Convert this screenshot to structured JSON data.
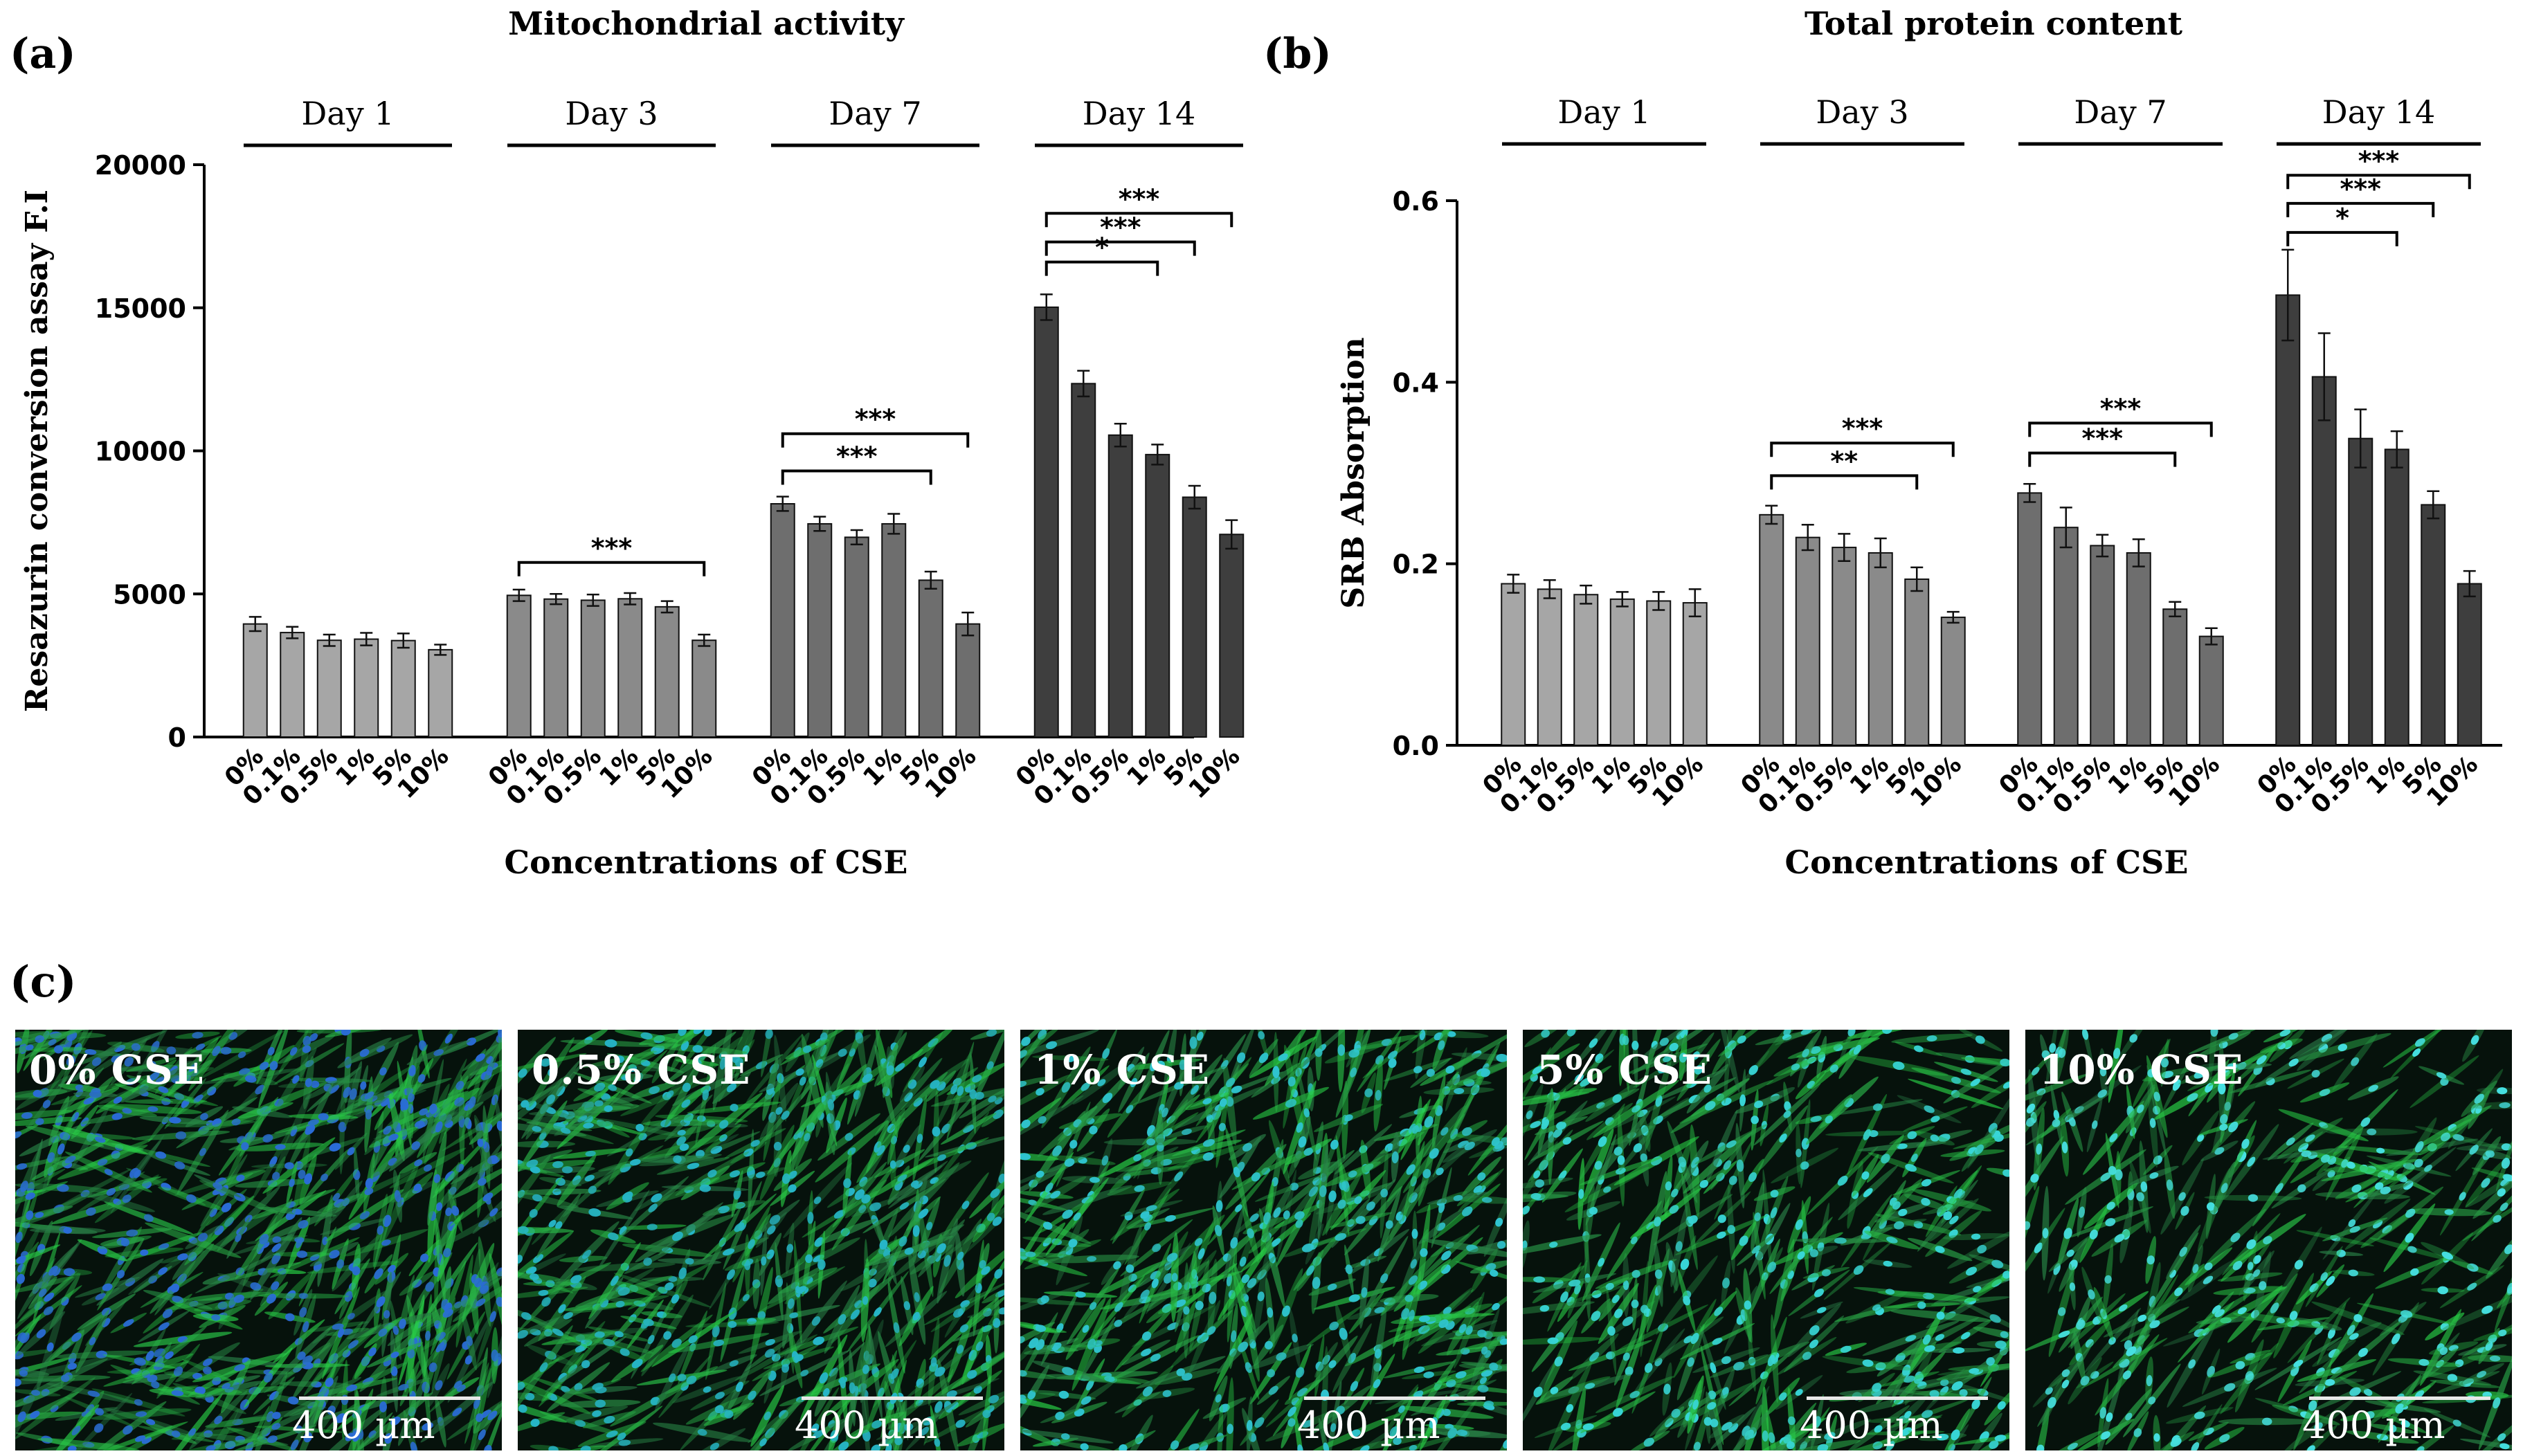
{
  "chart_data": [
    {
      "panel": "(a)",
      "type": "bar",
      "title": "Mitochondrial activity",
      "ylabel": "Resazurin conversion assay F.I",
      "xlabel": "Concentrations of CSE",
      "ylim": [
        0,
        20000
      ],
      "yticks": [
        "0",
        "5000",
        "10000",
        "15000",
        "20000"
      ],
      "categories": [
        "0%",
        "0.1%",
        "0.5%",
        "1%",
        "5%",
        "10%"
      ],
      "series": [
        {
          "name": "Day 1",
          "color": "#a6a6a6",
          "values": [
            3950,
            3650,
            3380,
            3420,
            3370,
            3050
          ],
          "errors": [
            250,
            200,
            200,
            220,
            250,
            180
          ]
        },
        {
          "name": "Day 3",
          "color": "#8a8a8a",
          "values": [
            4950,
            4820,
            4780,
            4830,
            4550,
            3380
          ],
          "errors": [
            200,
            180,
            200,
            200,
            200,
            200
          ]
        },
        {
          "name": "Day 7",
          "color": "#6e6e6e",
          "values": [
            8150,
            7450,
            6980,
            7450,
            5480,
            3950
          ],
          "errors": [
            250,
            250,
            250,
            350,
            300,
            400
          ]
        },
        {
          "name": "Day 14",
          "color": "#3e3e3e",
          "values": [
            15020,
            12350,
            10550,
            9870,
            8380,
            7080
          ],
          "errors": [
            450,
            450,
            400,
            350,
            400,
            500
          ]
        }
      ],
      "significance": [
        {
          "group": 2,
          "from": 0,
          "to": 5,
          "label": "***",
          "value": 6100
        },
        {
          "group": 3,
          "from": 0,
          "to": 4,
          "label": "***",
          "value": 9300
        },
        {
          "group": 3,
          "from": 0,
          "to": 5,
          "label": "***",
          "value": 10600
        },
        {
          "group": 4,
          "from": 0,
          "to": 3,
          "label": "*",
          "value": 16600
        },
        {
          "group": 4,
          "from": 0,
          "to": 4,
          "label": "***",
          "value": 17300
        },
        {
          "group": 4,
          "from": 0,
          "to": 5,
          "label": "***",
          "value": 18300
        }
      ]
    },
    {
      "panel": "(b)",
      "type": "bar",
      "title": "Total protein content",
      "ylabel": "SRB Absorption",
      "xlabel": "Concentrations of CSE",
      "ylim": [
        0,
        0.6
      ],
      "yticks": [
        "0.0",
        "0.2",
        "0.4",
        "0.6"
      ],
      "categories": [
        "0%",
        "0.1%",
        "0.5%",
        "1%",
        "5%",
        "10%"
      ],
      "series": [
        {
          "name": "Day 1",
          "color": "#a6a6a6",
          "values": [
            0.178,
            0.172,
            0.166,
            0.161,
            0.159,
            0.157
          ],
          "errors": [
            0.01,
            0.01,
            0.01,
            0.008,
            0.01,
            0.015
          ]
        },
        {
          "name": "Day 3",
          "color": "#8a8a8a",
          "values": [
            0.254,
            0.229,
            0.218,
            0.212,
            0.183,
            0.141
          ],
          "errors": [
            0.01,
            0.014,
            0.015,
            0.016,
            0.013,
            0.006
          ]
        },
        {
          "name": "Day 7",
          "color": "#6e6e6e",
          "values": [
            0.278,
            0.24,
            0.22,
            0.212,
            0.15,
            0.12
          ],
          "errors": [
            0.01,
            0.022,
            0.012,
            0.015,
            0.008,
            0.009
          ]
        },
        {
          "name": "Day 14",
          "color": "#3e3e3e",
          "values": [
            0.496,
            0.406,
            0.338,
            0.326,
            0.265,
            0.178
          ],
          "errors": [
            0.05,
            0.048,
            0.032,
            0.02,
            0.015,
            0.014
          ]
        }
      ],
      "significance": [
        {
          "group": 2,
          "from": 0,
          "to": 4,
          "label": "**",
          "value": 0.297
        },
        {
          "group": 2,
          "from": 0,
          "to": 5,
          "label": "***",
          "value": 0.333
        },
        {
          "group": 3,
          "from": 0,
          "to": 4,
          "label": "***",
          "value": 0.322
        },
        {
          "group": 3,
          "from": 0,
          "to": 5,
          "label": "***",
          "value": 0.355
        },
        {
          "group": 4,
          "from": 0,
          "to": 3,
          "label": "*",
          "value": 0.565
        },
        {
          "group": 4,
          "from": 0,
          "to": 4,
          "label": "***",
          "value": 0.597
        },
        {
          "group": 4,
          "from": 0,
          "to": 5,
          "label": "***",
          "value": 0.628
        }
      ]
    }
  ],
  "micrographs": {
    "panel_label": "(c)",
    "scale_label": "400 µm",
    "items": [
      {
        "label": "0% CSE",
        "seed": 11,
        "nucleus_color": "#2a6bd8",
        "density": 1.35
      },
      {
        "label": "0.5% CSE",
        "seed": 23,
        "nucleus_color": "#26b5c8",
        "density": 1.15
      },
      {
        "label": "1% CSE",
        "seed": 37,
        "nucleus_color": "#2fc4d0",
        "density": 1.05
      },
      {
        "label": "5% CSE",
        "seed": 53,
        "nucleus_color": "#38d6d8",
        "density": 0.9
      },
      {
        "label": "10% CSE",
        "seed": 71,
        "nucleus_color": "#46e0e2",
        "density": 0.75
      }
    ]
  }
}
